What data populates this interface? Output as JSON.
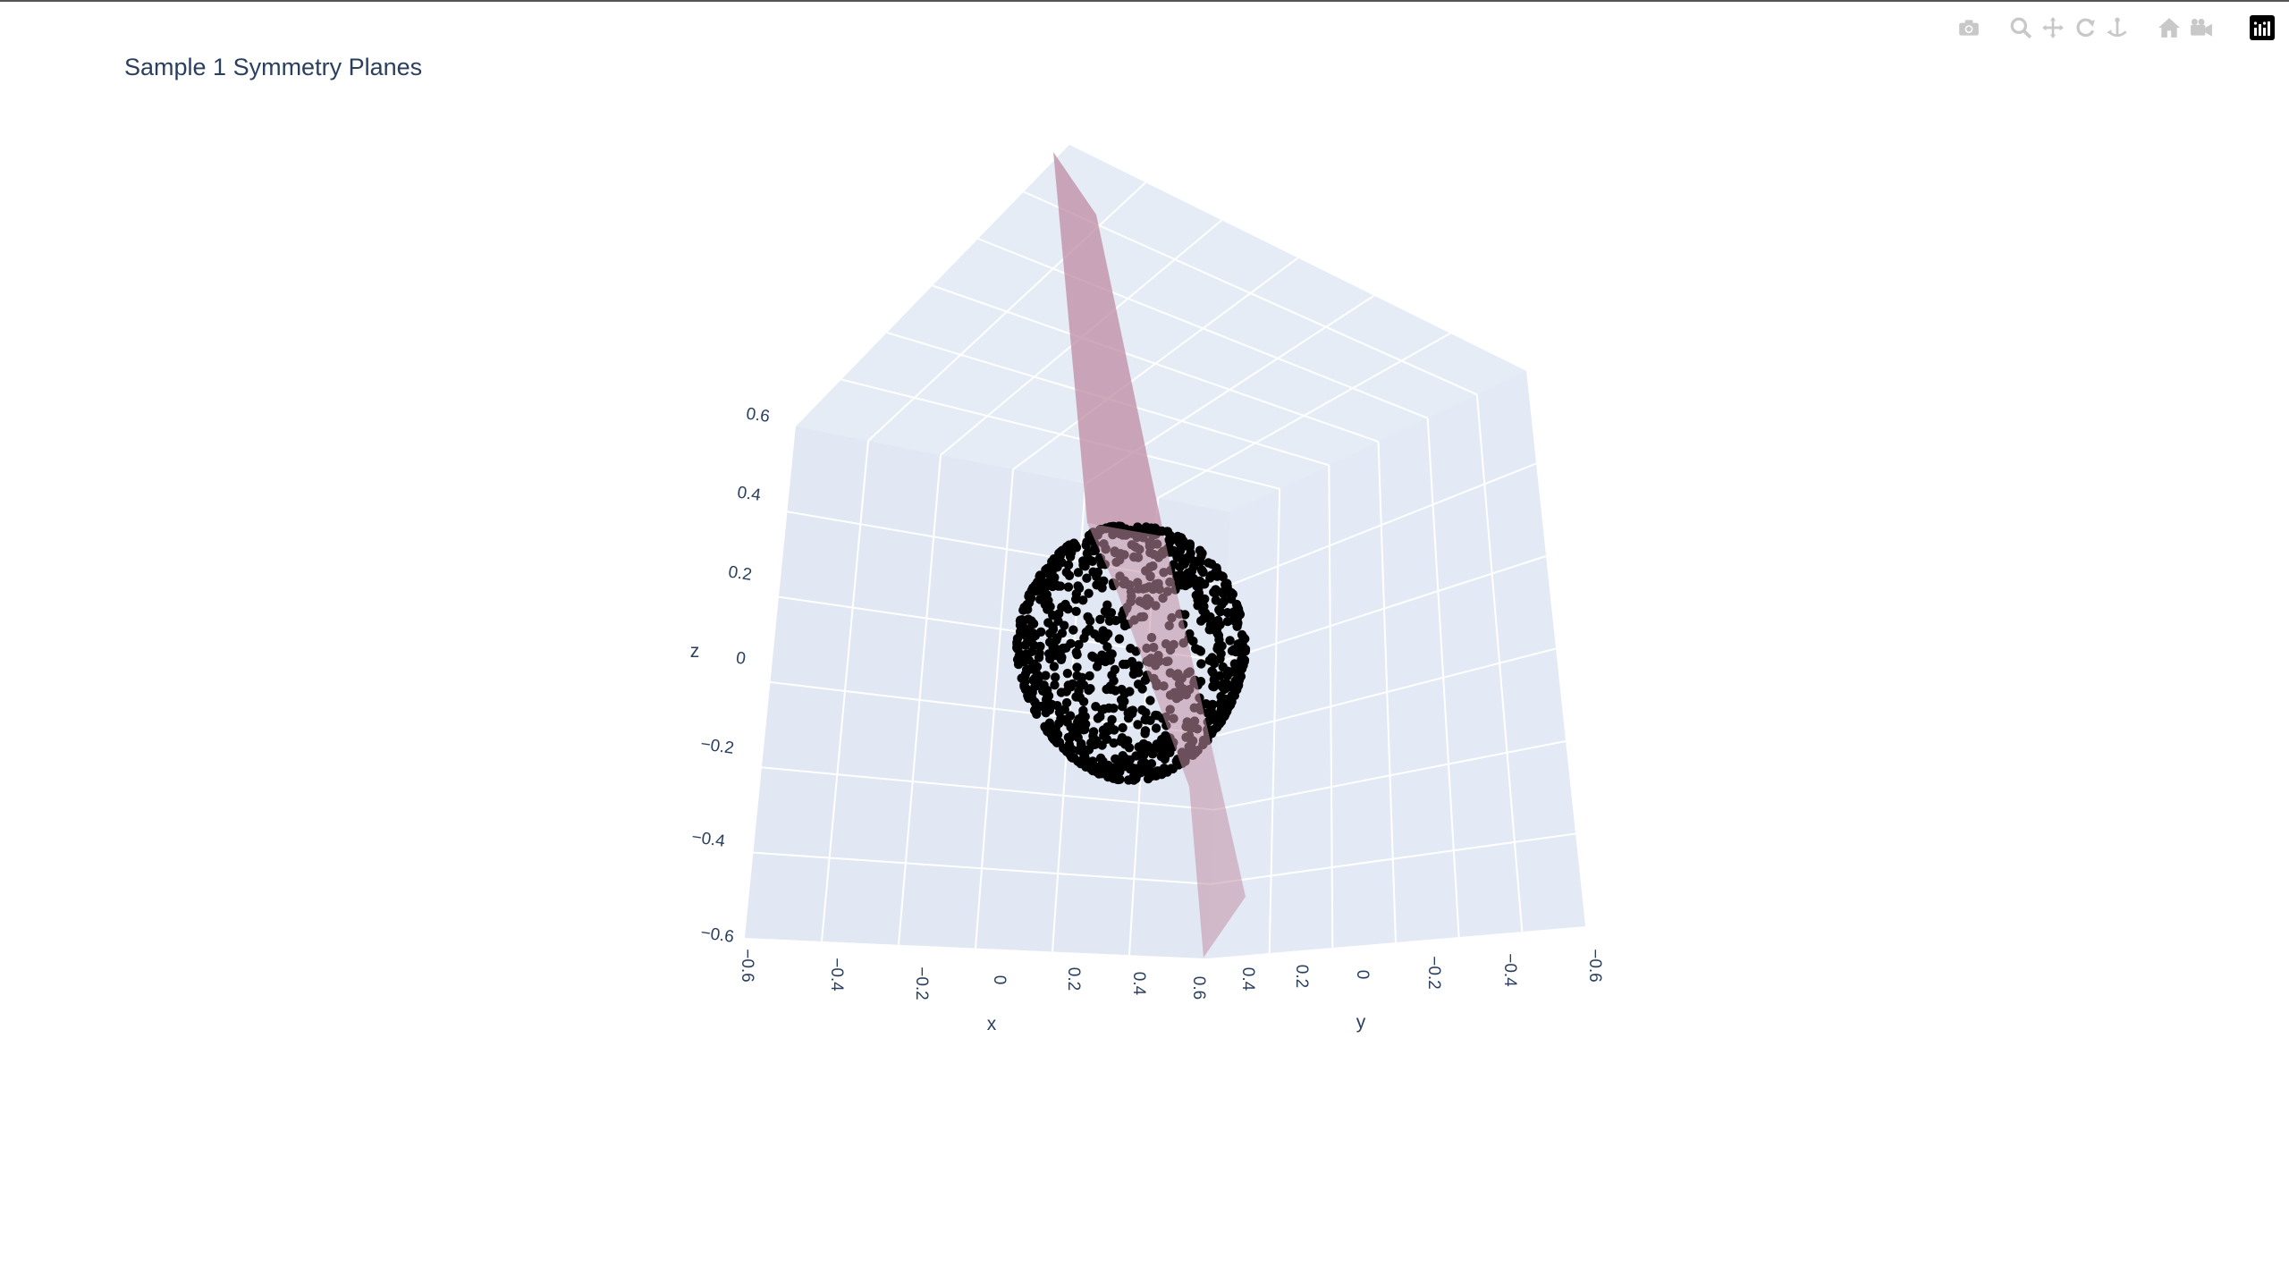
{
  "title": "Sample 1 Symmetry Planes",
  "modebar": {
    "buttons": [
      {
        "name": "camera-icon",
        "title": "Download plot as a png"
      },
      {
        "name": "zoom-icon",
        "title": "Zoom"
      },
      {
        "name": "pan-icon",
        "title": "Pan"
      },
      {
        "name": "orbit-rotation-icon",
        "title": "Orbital rotation"
      },
      {
        "name": "turntable-rotation-icon",
        "title": "Turntable rotation"
      },
      {
        "name": "home-icon",
        "title": "Reset camera to default"
      },
      {
        "name": "camera-view-icon",
        "title": "Reset camera to last save"
      },
      {
        "name": "plotly-logo-icon",
        "title": "Produced with Plotly"
      }
    ],
    "icon_color": "#c8c8c8",
    "logo_color": "#000000"
  },
  "chart_data": {
    "type": "scatter3d",
    "title": "Sample 1 Symmetry Planes",
    "xlabel": "x",
    "ylabel": "y",
    "zlabel": "z",
    "x_ticks": [
      "−0.6",
      "−0.4",
      "−0.2",
      "0",
      "0.2",
      "0.4",
      "0.6"
    ],
    "y_ticks": [
      "0.4",
      "0.2",
      "0",
      "−0.2",
      "−0.4",
      "−0.6"
    ],
    "z_ticks": [
      "−0.6",
      "−0.4",
      "−0.2",
      "0",
      "0.2",
      "0.4",
      "0.6"
    ],
    "xlim": [
      -0.6,
      0.6
    ],
    "ylim": [
      -0.6,
      0.4
    ],
    "zlim": [
      -0.6,
      0.6
    ],
    "grid": true,
    "scene_bg": "#e5ecf6",
    "series": [
      {
        "type": "point-cloud",
        "color": "#000000",
        "approx_points": 1024
      },
      {
        "type": "plane",
        "color": "#c28fa6",
        "opacity": 0.75
      }
    ]
  }
}
